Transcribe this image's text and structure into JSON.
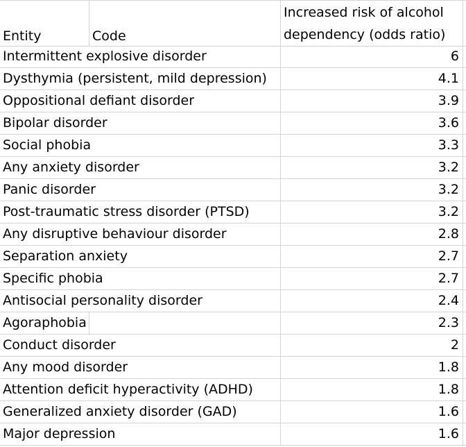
{
  "table": {
    "headers": {
      "entity": "Entity",
      "code": "Code",
      "value_line1": "Increased risk of alcohol",
      "value_line2": "dependency (odds ratio)"
    },
    "rows": [
      {
        "entity": "Intermittent explosive disorder",
        "value": "6"
      },
      {
        "entity": "Dysthymia (persistent, mild depression)",
        "value": "4.1"
      },
      {
        "entity": "Oppositional defiant disorder",
        "value": "3.9"
      },
      {
        "entity": "Bipolar disorder",
        "value": "3.6"
      },
      {
        "entity": "Social phobia",
        "value": "3.3"
      },
      {
        "entity": "Any anxiety disorder",
        "value": "3.2"
      },
      {
        "entity": "Panic disorder",
        "value": "3.2"
      },
      {
        "entity": "Post-traumatic stress disorder (PTSD)",
        "value": "3.2"
      },
      {
        "entity": "Any disruptive behaviour disorder",
        "value": "2.8"
      },
      {
        "entity": "Separation anxiety",
        "value": "2.7"
      },
      {
        "entity": "Specific phobia",
        "value": "2.7"
      },
      {
        "entity": "Antisocial personality disorder",
        "value": "2.4"
      },
      {
        "entity": "Agoraphobia",
        "value": "2.3"
      },
      {
        "entity": "Conduct disorder",
        "value": "2"
      },
      {
        "entity": "Any mood disorder",
        "value": "1.8"
      },
      {
        "entity": "Attention deficit hyperactivity (ADHD)",
        "value": "1.8"
      },
      {
        "entity": "Generalized anxiety disorder (GAD)",
        "value": "1.6"
      },
      {
        "entity": "Major depression",
        "value": "1.6"
      }
    ]
  }
}
